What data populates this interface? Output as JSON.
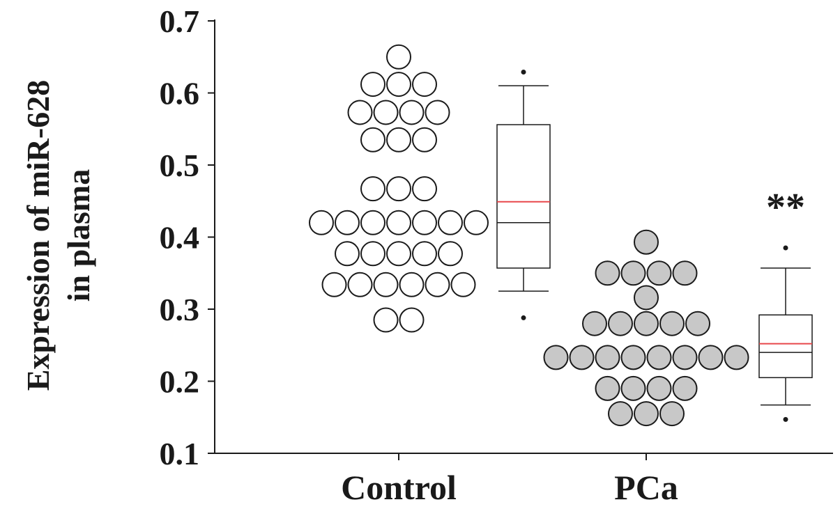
{
  "chart_data": {
    "type": "scatter",
    "ylabel_lines": [
      "Expression of miR-628",
      "in plasma"
    ],
    "ylim": [
      0.1,
      0.7
    ],
    "y_ticks": [
      "0.7",
      "0.6",
      "0.5",
      "0.4",
      "0.3",
      "0.2",
      "0.1"
    ],
    "categories": [
      "Control",
      "PCa"
    ],
    "colors": {
      "control_fill": "#ffffff",
      "pca_fill": "#c8c8c8",
      "mean_line": "#e8474a",
      "stroke": "#1a1a1a"
    },
    "series": [
      {
        "name": "Control",
        "points": [
          {
            "y": 0.65,
            "n": 1
          },
          {
            "y": 0.612,
            "n": 3
          },
          {
            "y": 0.573,
            "n": 4
          },
          {
            "y": 0.535,
            "n": 3
          },
          {
            "y": 0.467,
            "n": 3
          },
          {
            "y": 0.42,
            "n": 7
          },
          {
            "y": 0.377,
            "n": 5
          },
          {
            "y": 0.334,
            "n": 6
          },
          {
            "y": 0.285,
            "n": 2
          }
        ],
        "box": {
          "q1": 0.357,
          "median": 0.42,
          "mean": 0.449,
          "q3": 0.556,
          "whisker_low": 0.325,
          "whisker_high": 0.61,
          "outliers": [
            0.629,
            0.288
          ]
        }
      },
      {
        "name": "PCa",
        "points": [
          {
            "y": 0.393,
            "n": 1
          },
          {
            "y": 0.35,
            "n": 4
          },
          {
            "y": 0.316,
            "n": 1
          },
          {
            "y": 0.28,
            "n": 5
          },
          {
            "y": 0.233,
            "n": 8
          },
          {
            "y": 0.19,
            "n": 4
          },
          {
            "y": 0.155,
            "n": 3
          }
        ],
        "box": {
          "q1": 0.205,
          "median": 0.24,
          "mean": 0.252,
          "q3": 0.292,
          "whisker_low": 0.167,
          "whisker_high": 0.357,
          "outliers": [
            0.385,
            0.147
          ]
        }
      }
    ],
    "annotations": [
      {
        "text": "**",
        "target": "PCa"
      }
    ]
  }
}
